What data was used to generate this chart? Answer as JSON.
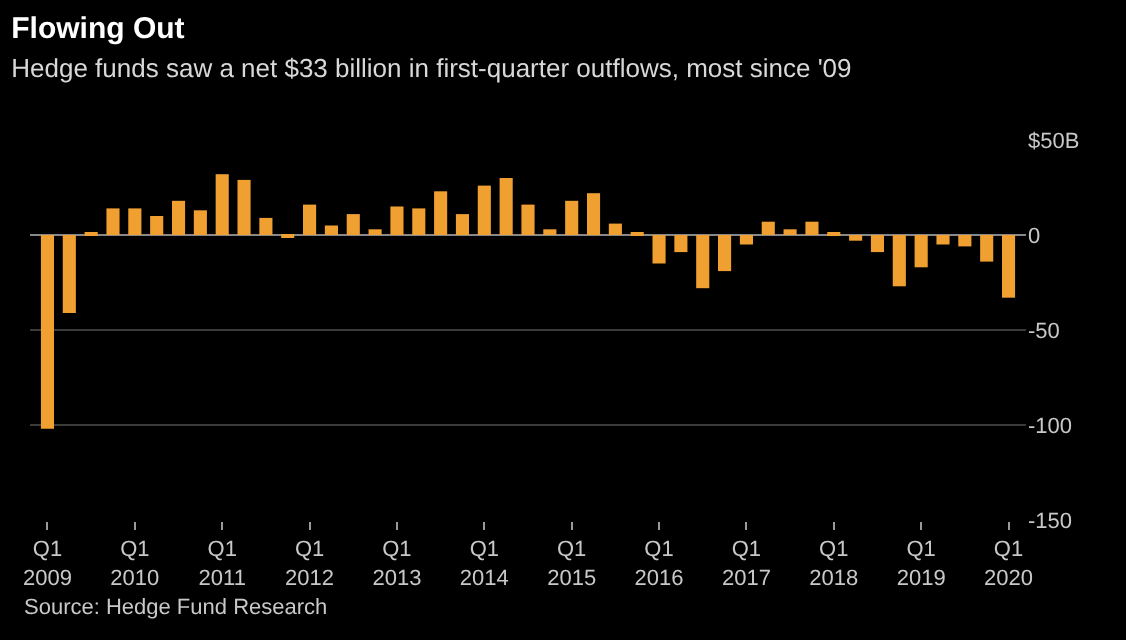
{
  "chart_data": {
    "type": "bar",
    "title": "Flowing Out",
    "subtitle": "Hedge funds saw a net $33 billion in first-quarter outflows, most since '09",
    "categories": [
      "Q1\n2009",
      null,
      null,
      null,
      "Q1\n2010",
      null,
      null,
      null,
      "Q1\n2011",
      null,
      null,
      null,
      "Q1\n2012",
      null,
      null,
      null,
      "Q1\n2013",
      null,
      null,
      null,
      "Q1\n2014",
      null,
      null,
      null,
      "Q1\n2015",
      null,
      null,
      null,
      "Q1\n2016",
      null,
      null,
      null,
      "Q1\n2017",
      null,
      null,
      null,
      "Q1\n2018",
      null,
      null,
      null,
      "Q1\n2019",
      null,
      null,
      null,
      "Q1\n2020"
    ],
    "values": [
      -102,
      -41,
      1,
      14,
      14,
      10,
      18,
      13,
      32,
      29,
      9,
      -1,
      16,
      5,
      11,
      3,
      15,
      14,
      23,
      11,
      26,
      30,
      16,
      3,
      18,
      22,
      6,
      1,
      -15,
      -9,
      -28,
      -19,
      -5,
      7,
      3,
      7,
      1,
      -3,
      -9,
      -27,
      -17,
      -5,
      -6,
      -14,
      -33
    ],
    "color": "#f0a030",
    "ylim": [
      -150,
      50
    ],
    "yticks": [
      {
        "value": 50,
        "label": "$50B"
      },
      0,
      -50,
      -100,
      -150
    ],
    "grid": "y",
    "annotations": [
      "Source: Hedge Fund Research"
    ]
  }
}
